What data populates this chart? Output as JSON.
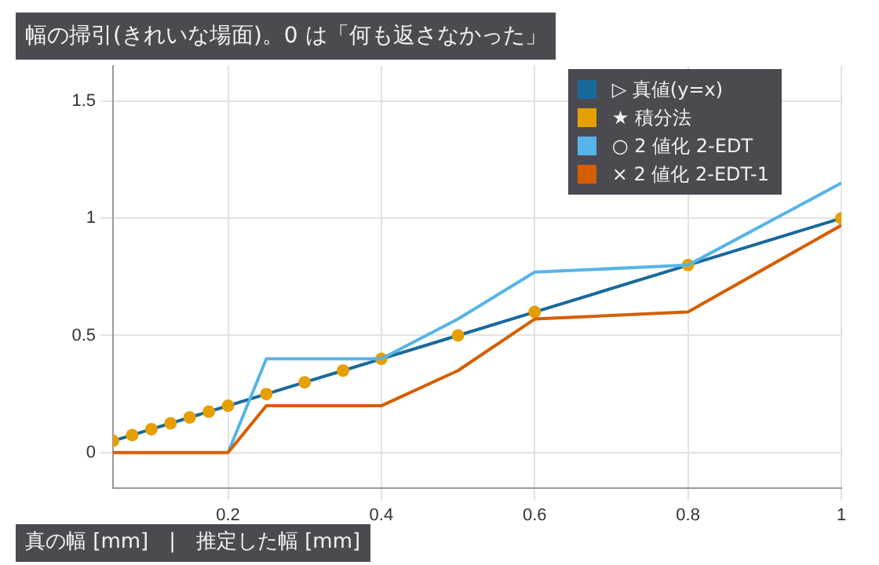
{
  "chart_data": {
    "type": "line",
    "title": "幅の掃引(きれいな場面)。0 は「何も返さなかった」",
    "xlabel": "真の幅 [mm]　|　推定した幅 [mm]",
    "x": [
      0.05,
      0.075,
      0.1,
      0.125,
      0.15,
      0.175,
      0.2,
      0.25,
      0.3,
      0.35,
      0.4,
      0.5,
      0.6,
      0.8,
      1
    ],
    "series": [
      {
        "name": "▷ 真値(y=x)",
        "color": "#19699b",
        "marker": "none",
        "values": [
          0.05,
          0.075,
          0.1,
          0.125,
          0.15,
          0.175,
          0.2,
          0.25,
          0.3,
          0.35,
          0.4,
          0.5,
          0.6,
          0.8,
          1
        ]
      },
      {
        "name": "★ 積分法",
        "color": "#e69f00",
        "type": "scatter",
        "marker": "circle",
        "values": [
          0.05,
          0.075,
          0.1,
          0.125,
          0.15,
          0.175,
          0.2,
          0.25,
          0.3,
          0.35,
          0.4,
          0.5,
          0.6,
          0.8,
          1
        ]
      },
      {
        "name": "○ 2 値化 2-EDT",
        "color": "#56b4e9",
        "marker": "none",
        "values": [
          null,
          null,
          null,
          null,
          null,
          null,
          0,
          0.4,
          0.4,
          0.4,
          0.4,
          0.57,
          0.77,
          0.8,
          1.15
        ]
      },
      {
        "name": "× 2 値化 2-EDT-1",
        "color": "#d55e00",
        "marker": "none",
        "values": [
          0,
          0,
          0,
          0,
          0,
          0,
          0,
          0.2,
          0.2,
          0.2,
          0.2,
          0.35,
          0.57,
          0.6,
          0.97
        ]
      }
    ],
    "xlim": [
      0.05,
      1
    ],
    "xticks": [
      0.2,
      0.4,
      0.6,
      0.8,
      1
    ],
    "ylim": [
      -0.15,
      1.65
    ],
    "yticks": [
      0,
      0.5,
      1,
      1.5
    ],
    "grid": true,
    "legend": "top right"
  }
}
